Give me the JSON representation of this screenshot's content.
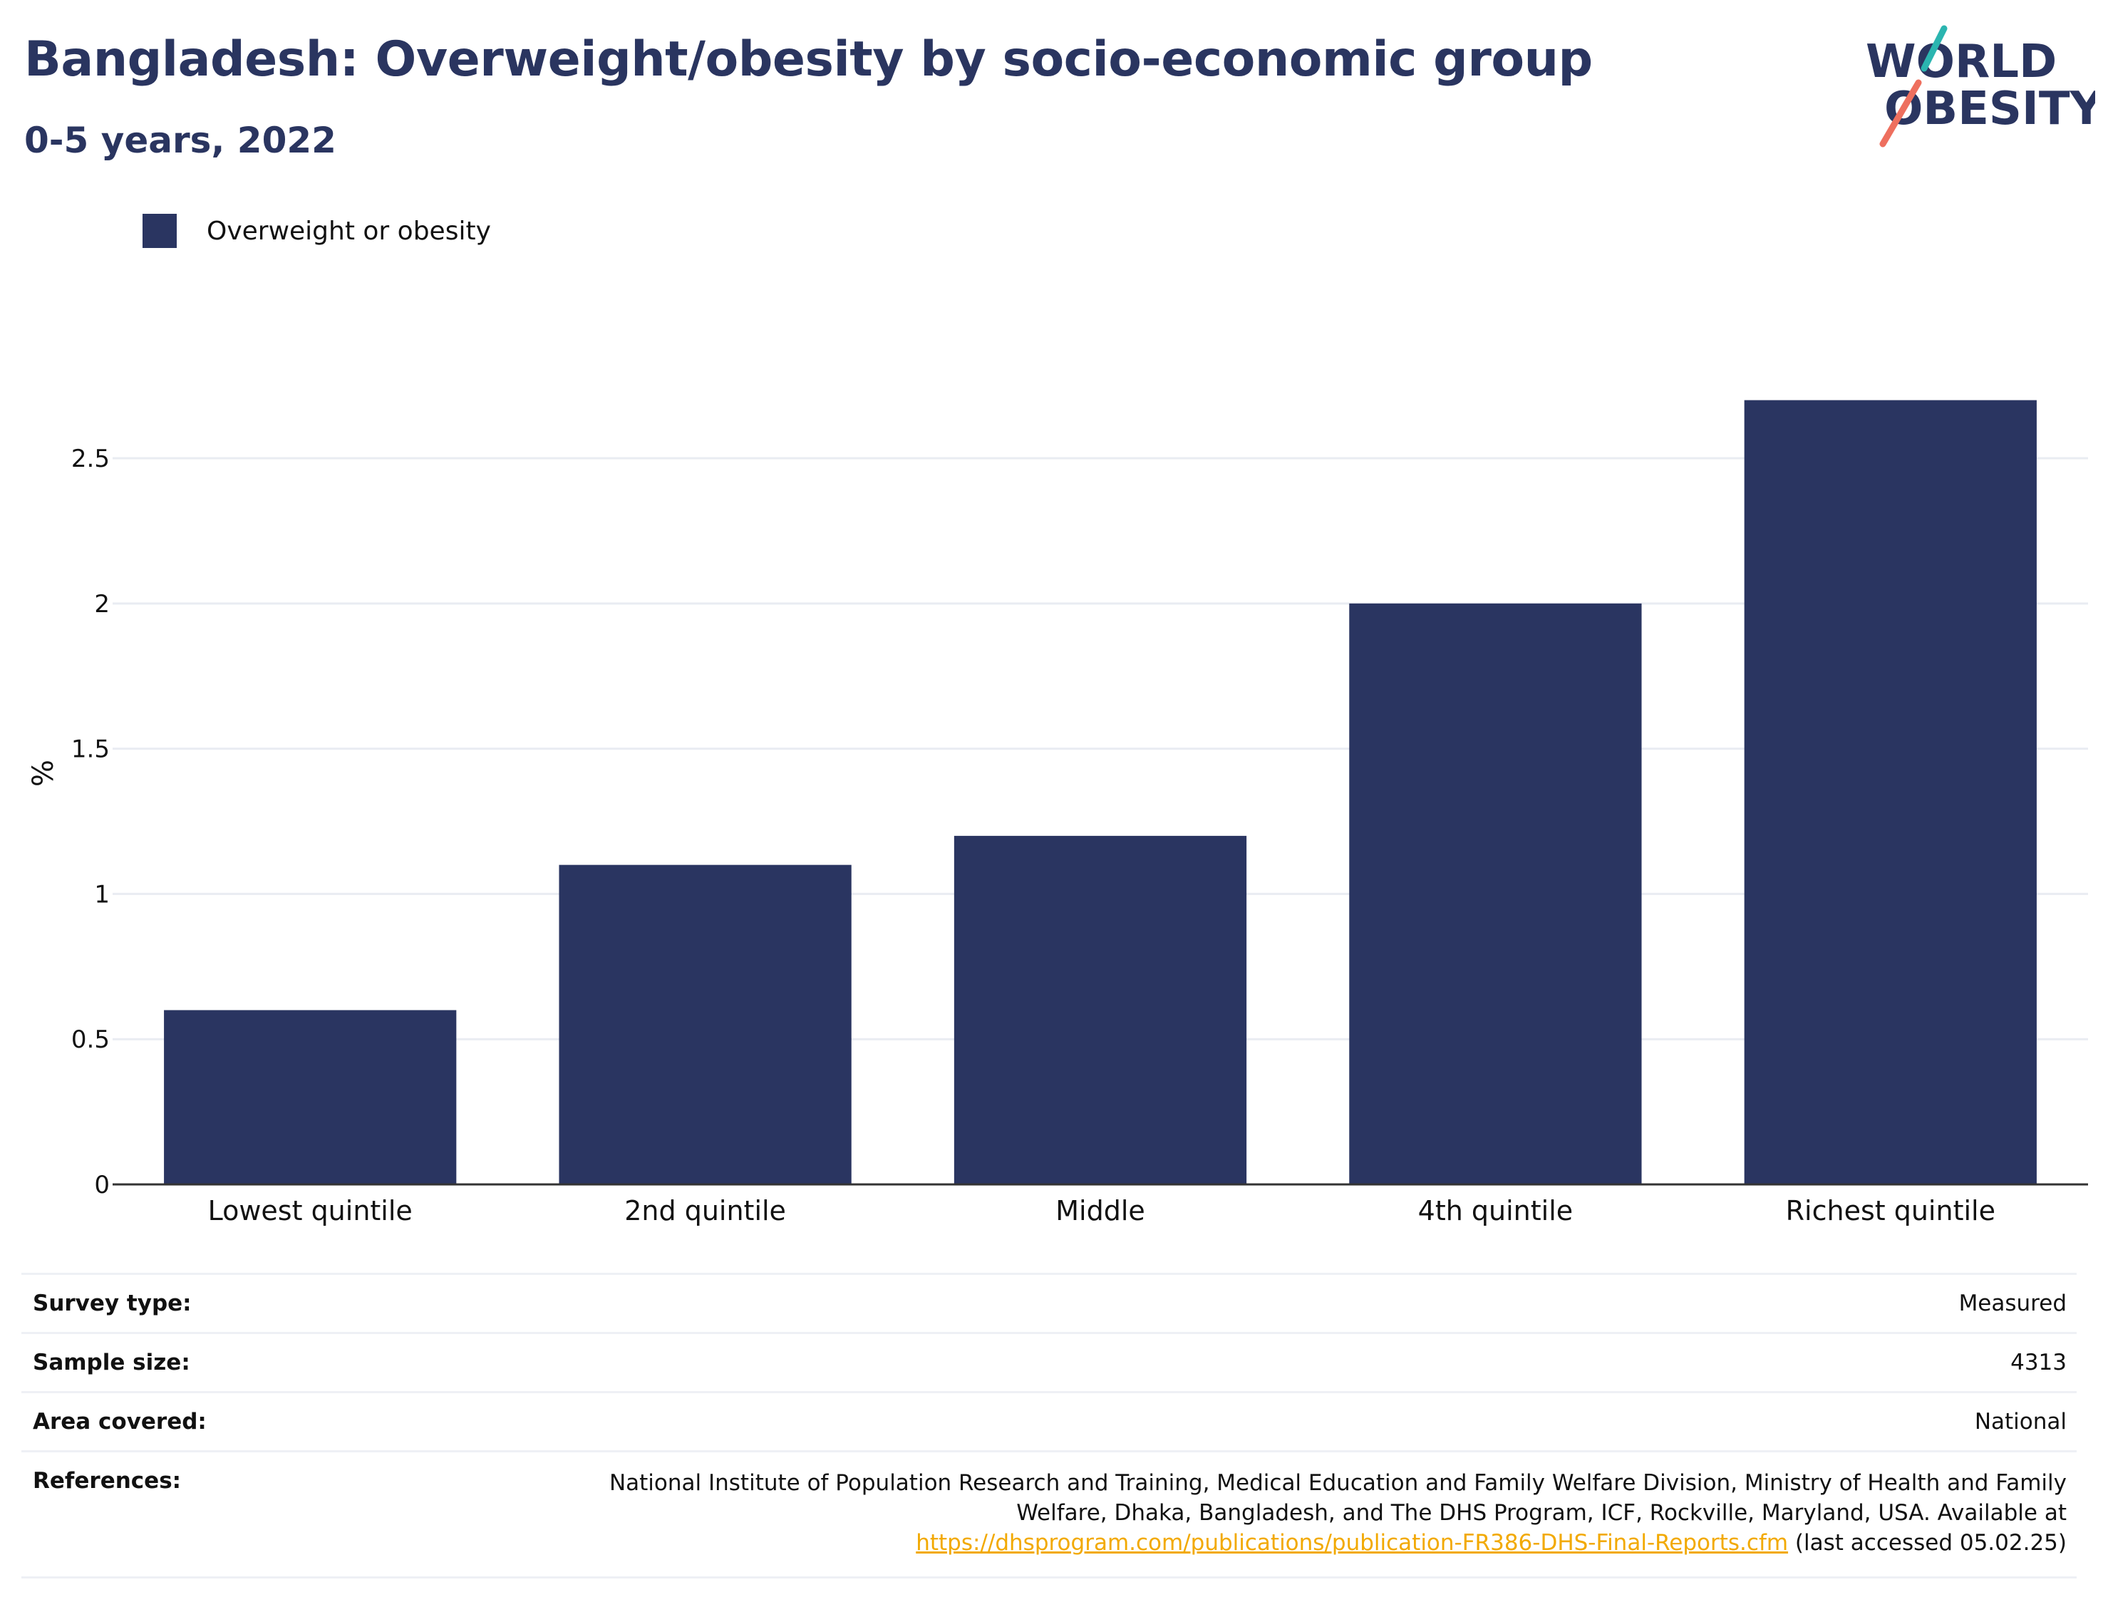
{
  "header": {
    "title": "Bangladesh: Overweight/obesity by socio-economic group",
    "subtitle": "0-5 years, 2022"
  },
  "logo": {
    "line1": "WORLD",
    "line2": "OBESITY",
    "colors": {
      "text": "#2a3560",
      "teal": "#2bb5b0",
      "coral": "#ee6f5e"
    }
  },
  "legend": {
    "label": "Overweight or obesity"
  },
  "colors": {
    "bar": "#2a3561",
    "grid": "#e9ecf2",
    "axis": "#333333",
    "heading": "#2a3560",
    "link": "#f2a900"
  },
  "chart_data": {
    "type": "bar",
    "categories": [
      "Lowest quintile",
      "2nd quintile",
      "Middle",
      "4th quintile",
      "Richest quintile"
    ],
    "series": [
      {
        "name": "Overweight or obesity",
        "values": [
          0.6,
          1.1,
          1.2,
          2.0,
          2.7
        ]
      }
    ],
    "ylabel": "%",
    "ylim": [
      0,
      2.9
    ],
    "yticks": [
      0,
      0.5,
      1,
      1.5,
      2,
      2.5
    ],
    "ytick_labels": [
      "0",
      "0.5",
      "1",
      "1.5",
      "2",
      "2.5"
    ],
    "grid": true,
    "legend_position": "top-left"
  },
  "info": {
    "survey_type": {
      "label": "Survey type:",
      "value": "Measured"
    },
    "sample_size": {
      "label": "Sample size:",
      "value": "4313"
    },
    "area_covered": {
      "label": "Area covered:",
      "value": "National"
    },
    "references": {
      "label": "References:",
      "line1": "National Institute of Population Research and Training, Medical Education and Family Welfare Division, Ministry of Health and Family",
      "line2": "Welfare, Dhaka, Bangladesh, and The DHS Program, ICF, Rockville, Maryland, USA. Available at",
      "link": "https://dhsprogram.com/publications/publication-FR386-DHS-Final-Reports.cfm",
      "suffix": "(last accessed 05.02.25)"
    }
  }
}
